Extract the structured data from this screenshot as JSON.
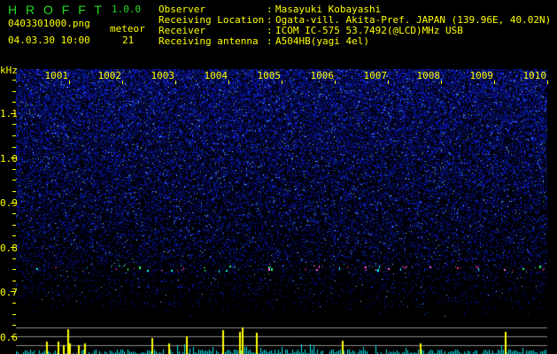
{
  "app": {
    "title": "H R O F F T",
    "version": "1.0.0"
  },
  "file": {
    "name": "0403301000.png",
    "datetime": "04.03.30 10:00"
  },
  "meteor": {
    "label": "meteor",
    "count": "21"
  },
  "info": [
    {
      "label": "Observer",
      "value": "Masayuki Kobayashi"
    },
    {
      "label": "Receiving Location",
      "value": "Ogata-vill. Akita-Pref. JAPAN (139.96E, 40.02N)"
    },
    {
      "label": "Receiver",
      "value": "ICOM IC-575 53.7492(@LCD)MHz USB"
    },
    {
      "label": "Receiving antenna",
      "value": "A504HB(yagi 4el)"
    }
  ],
  "axis": {
    "y_unit": "kHz",
    "y_ticks": [
      "1.1",
      "1.0",
      "0.9",
      "0.8",
      "0.7",
      "0.6"
    ],
    "x_ticks": [
      "1001",
      "1002",
      "1003",
      "1004",
      "1005",
      "1006",
      "1007",
      "1008",
      "1009",
      "1010"
    ]
  },
  "colors": {
    "text": "#ffff00",
    "title": "#22dd22",
    "noise": "#2020ff",
    "histogram": "#00e5ee",
    "meteor_bar": "#ffff00"
  }
}
